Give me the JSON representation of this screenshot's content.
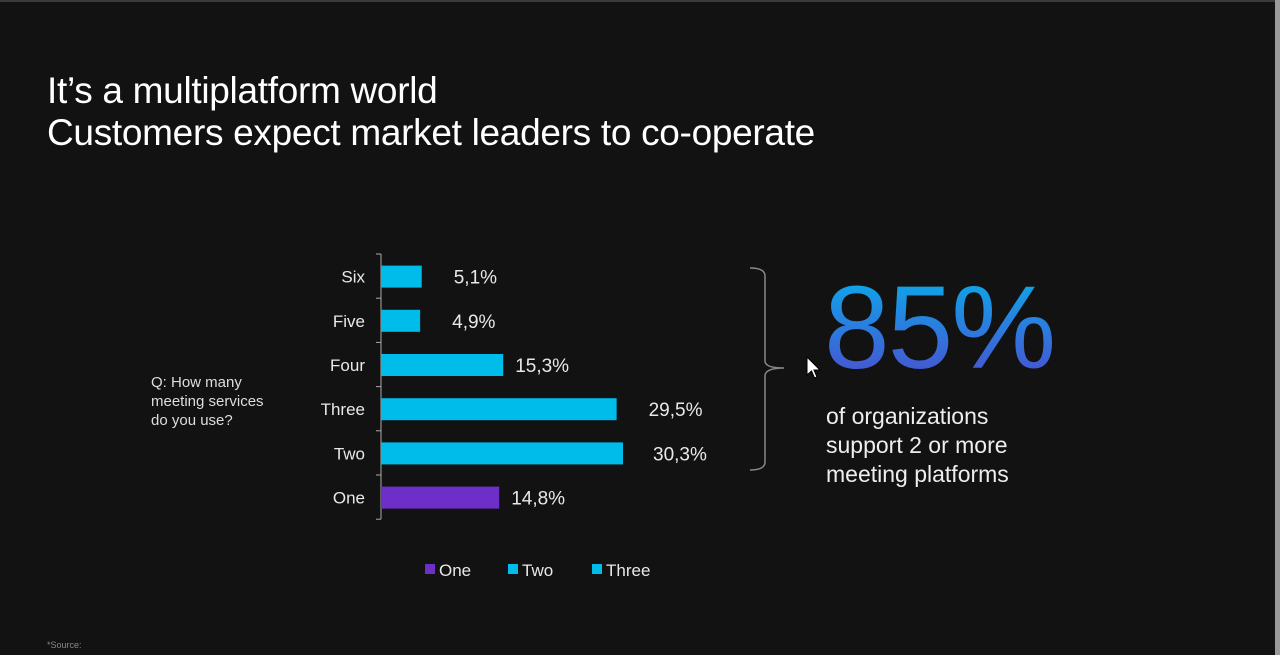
{
  "title": {
    "line1": "It’s a multiplatform world",
    "line2": "Customers expect market leaders to co-operate"
  },
  "question": {
    "line1": "Q: How many",
    "line2": "meeting services",
    "line3": "do you use?"
  },
  "chart_data": {
    "type": "bar",
    "orientation": "horizontal",
    "categories": [
      "Six",
      "Five",
      "Four",
      "Three",
      "Two",
      "One"
    ],
    "values": [
      5.1,
      4.9,
      15.3,
      29.5,
      30.3,
      14.8
    ],
    "data_labels": [
      "5,1%",
      "4,9%",
      "15,3%",
      "29,5%",
      "30,3%",
      "14,8%"
    ],
    "bar_colors": [
      "#00bceb",
      "#00bceb",
      "#00bceb",
      "#00bceb",
      "#00bceb",
      "#6e2fc9"
    ],
    "legend": [
      {
        "name": "One",
        "color": "#6e2fc9"
      },
      {
        "name": "Two",
        "color": "#00bceb"
      },
      {
        "name": "Three",
        "color": "#00bceb"
      }
    ],
    "legend_position": "bottom",
    "grid": false,
    "xlim": [
      0,
      32
    ]
  },
  "callout": {
    "value": "85%",
    "line1": "of organizations",
    "line2": "support 2 or more",
    "line3": "meeting platforms",
    "gradient": [
      "#0ea5ea",
      "#4b4fd0"
    ]
  },
  "source": "*Source:"
}
